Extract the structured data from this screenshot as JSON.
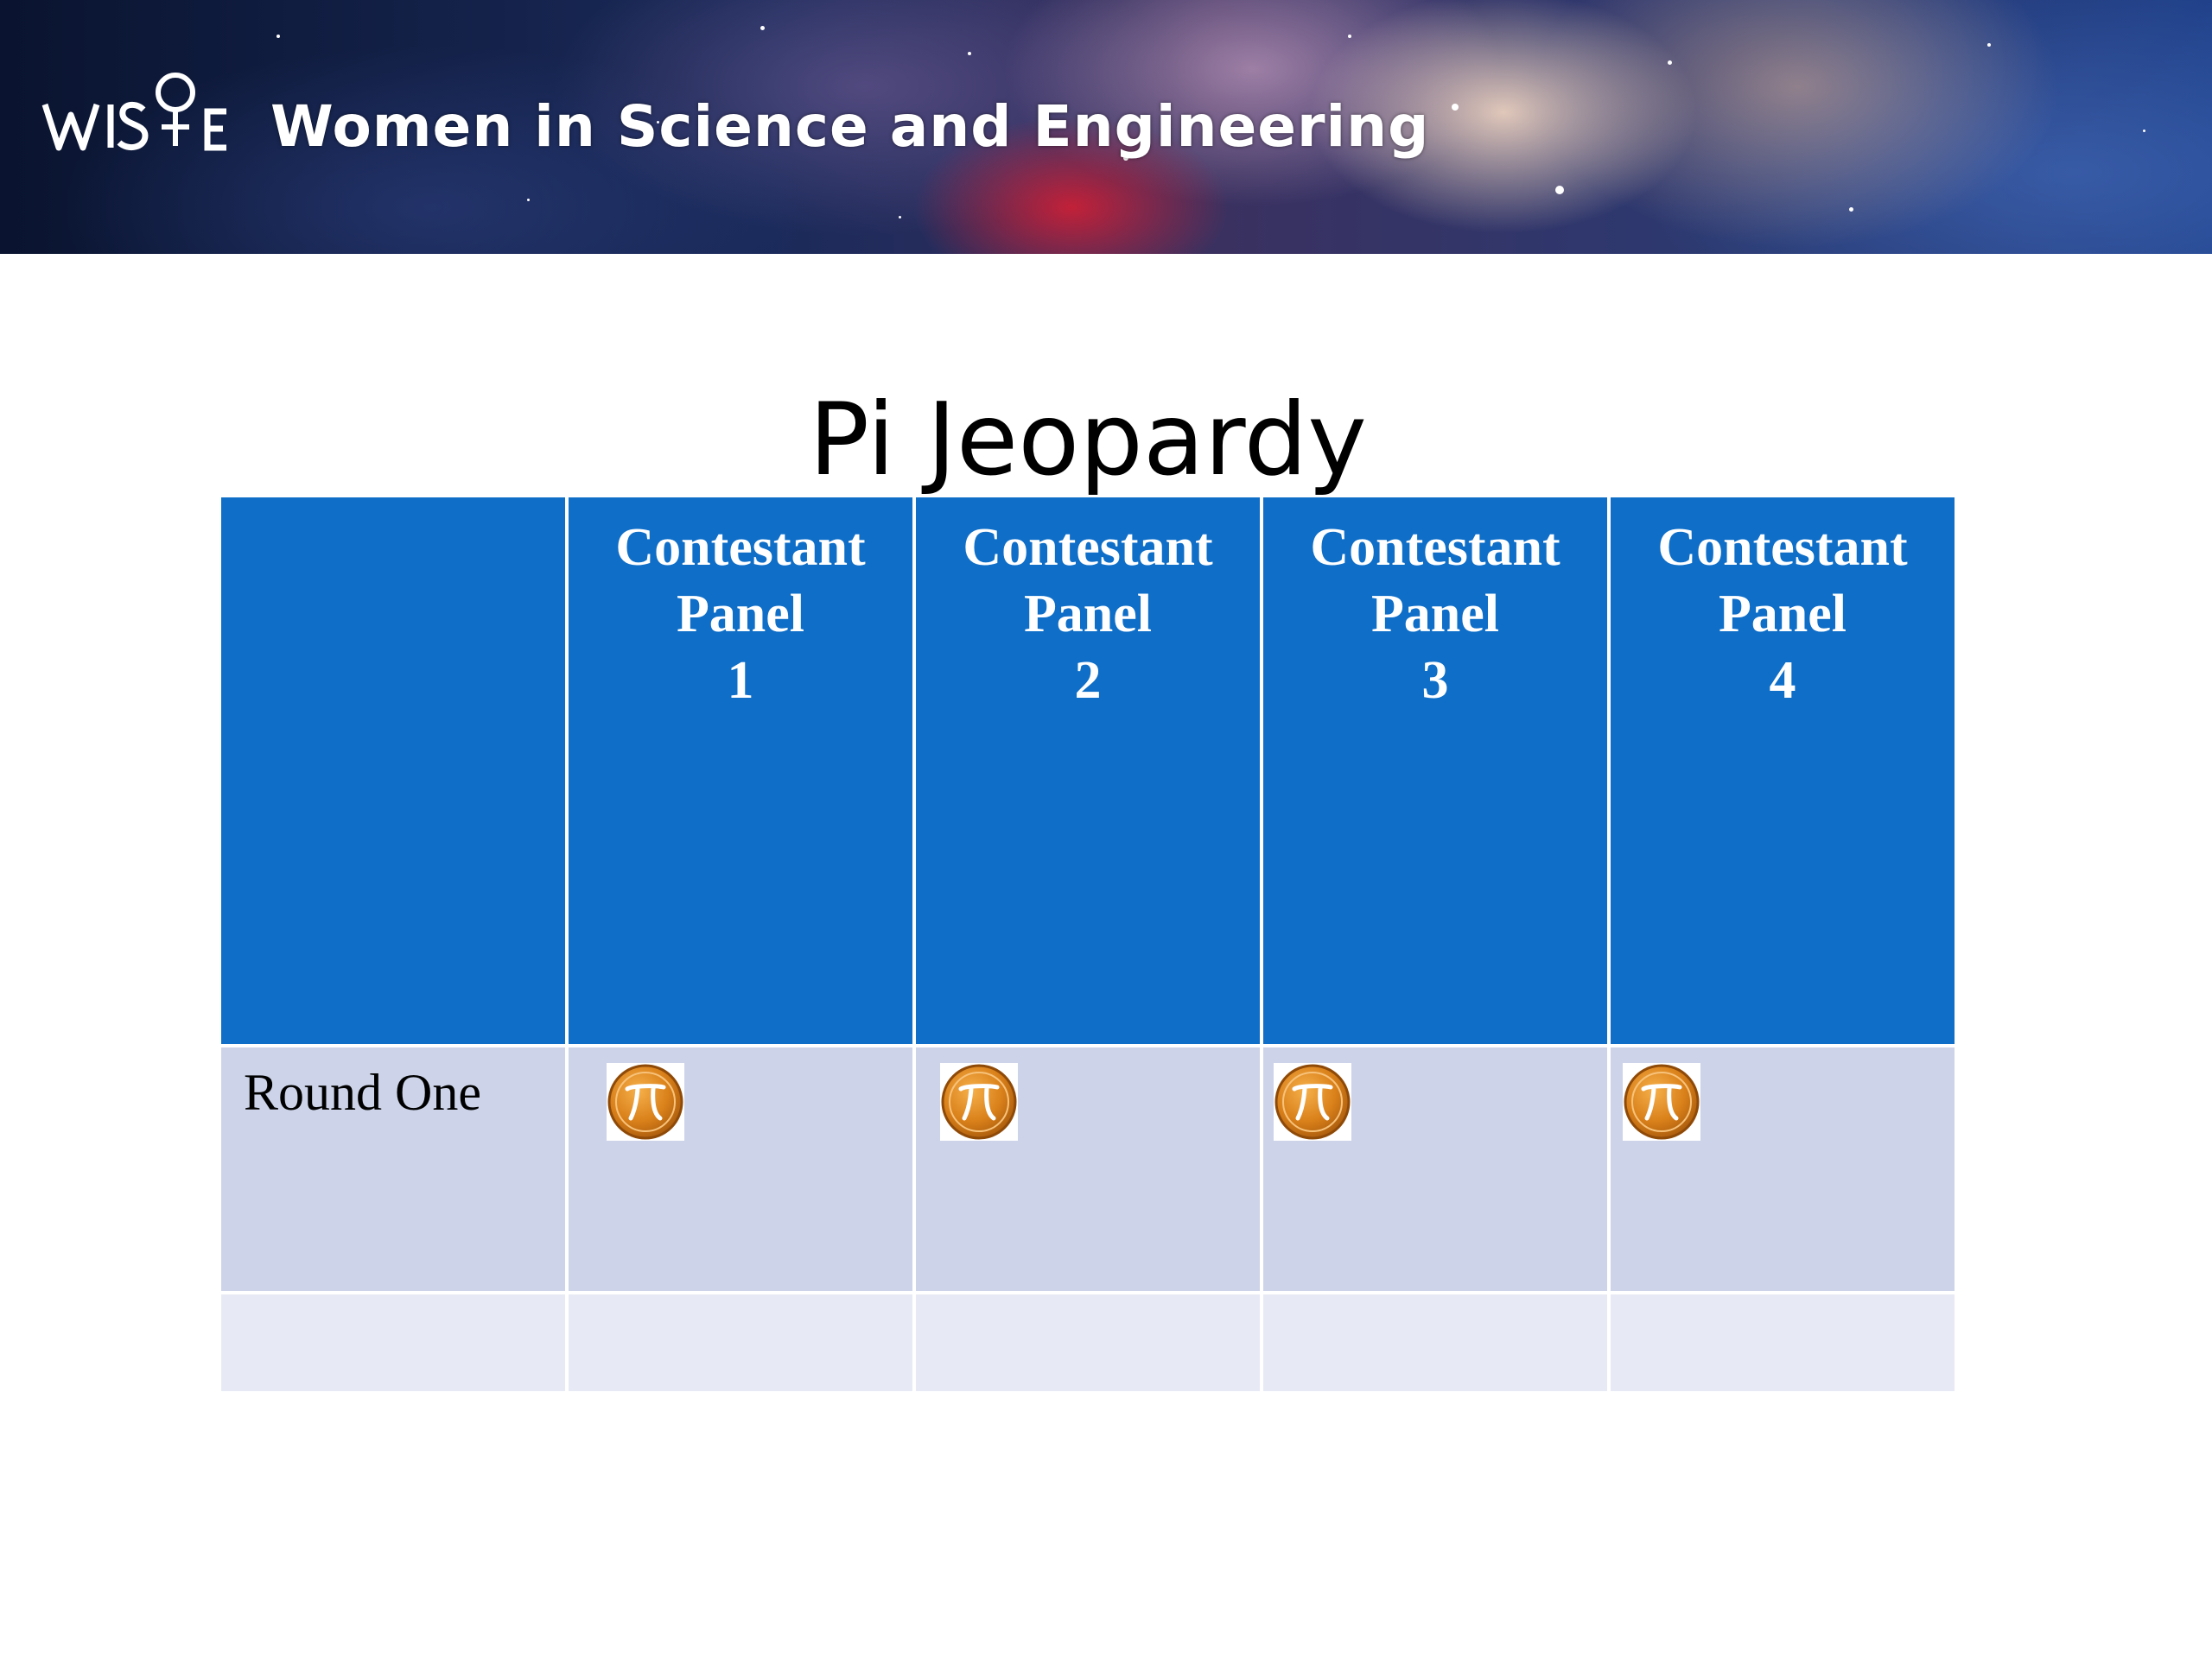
{
  "banner": {
    "logo_text": "WIS♀E",
    "title": "Women in Science and Engineering"
  },
  "slide": {
    "title": "Pi Jeopardy"
  },
  "board": {
    "columns": [
      {
        "line1": "Contestant",
        "line2": "Panel",
        "line3": "1"
      },
      {
        "line1": "Contestant",
        "line2": "Panel",
        "line3": "2"
      },
      {
        "line1": "Contestant",
        "line2": "Panel",
        "line3": "3"
      },
      {
        "line1": "Contestant",
        "line2": "Panel",
        "line3": "4"
      }
    ],
    "rows": [
      {
        "label": "Round One",
        "button_icon": "pi-coin-icon"
      },
      {
        "label": ""
      }
    ]
  },
  "colors": {
    "header_blue": "#0e6ec8",
    "row_band": "#cdd4e9",
    "row_band_light": "#e7eaf5",
    "coin_orange": "#d9801a"
  }
}
